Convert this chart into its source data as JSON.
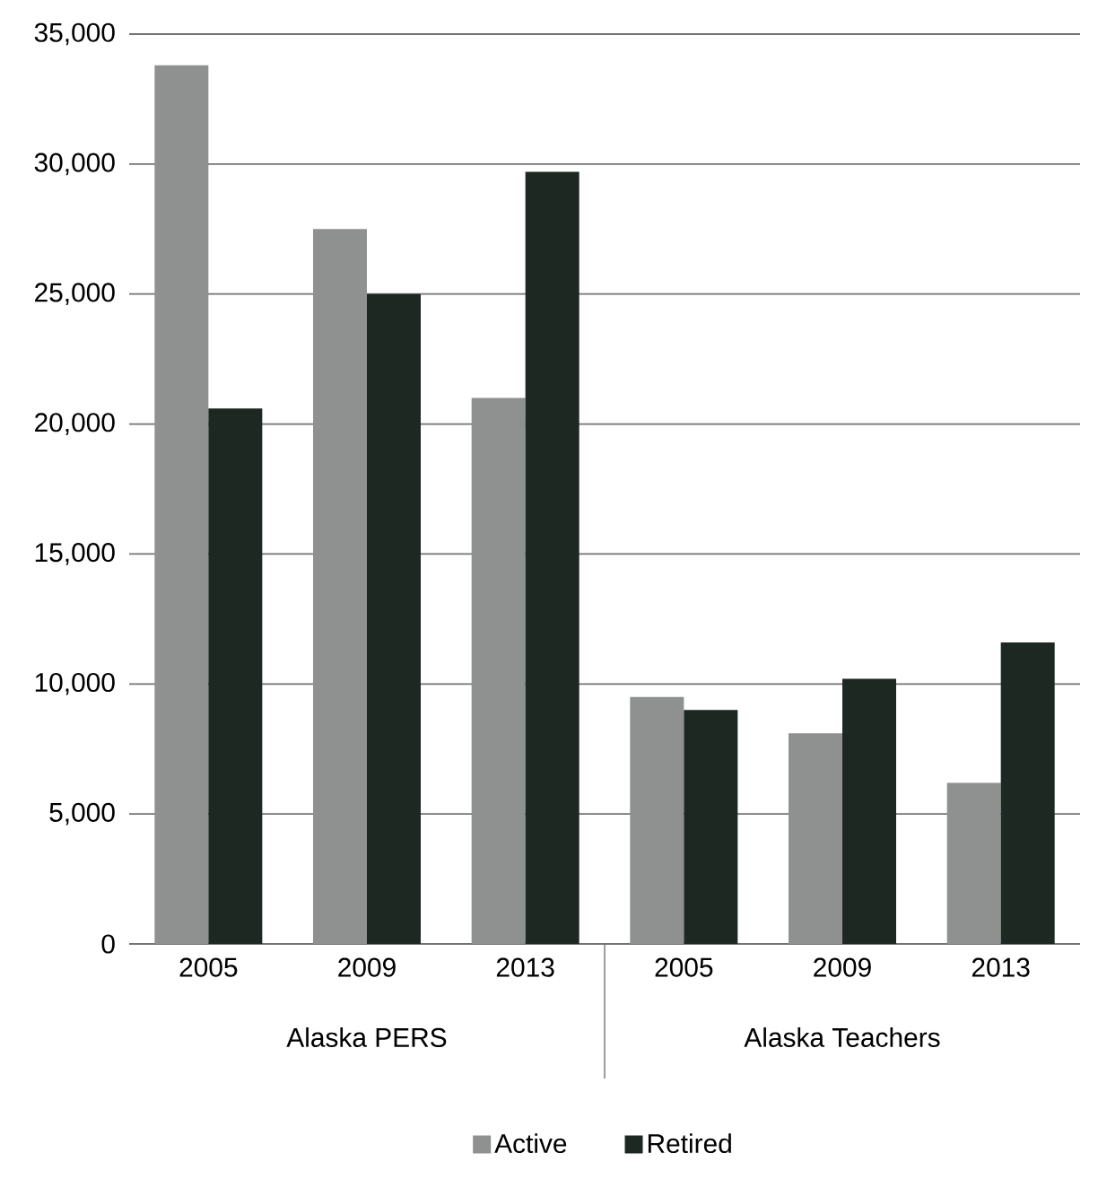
{
  "chart_data": {
    "type": "bar",
    "categories": [
      "2005",
      "2009",
      "2013",
      "2005",
      "2009",
      "2013"
    ],
    "series": [
      {
        "name": "Active",
        "color": "#8f9190",
        "values": [
          33800,
          27500,
          21000,
          9500,
          8100,
          6200
        ]
      },
      {
        "name": "Retired",
        "color": "#1e2822",
        "values": [
          20600,
          25000,
          29700,
          9000,
          10200,
          11600
        ]
      }
    ],
    "annotations": [
      "Alaska PERS",
      "Alaska Teachers"
    ],
    "ylim": [
      0,
      35000
    ],
    "yticks": [
      {
        "value": 0,
        "label": "0"
      },
      {
        "value": 5000,
        "label": "5,000"
      },
      {
        "value": 10000,
        "label": "10,000"
      },
      {
        "value": 15000,
        "label": "15,000"
      },
      {
        "value": 20000,
        "label": "20,000"
      },
      {
        "value": 25000,
        "label": "25,000"
      },
      {
        "value": 30000,
        "label": "30,000"
      },
      {
        "value": 35000,
        "label": "35,000"
      }
    ],
    "grid": "y",
    "legend": "bottom"
  }
}
